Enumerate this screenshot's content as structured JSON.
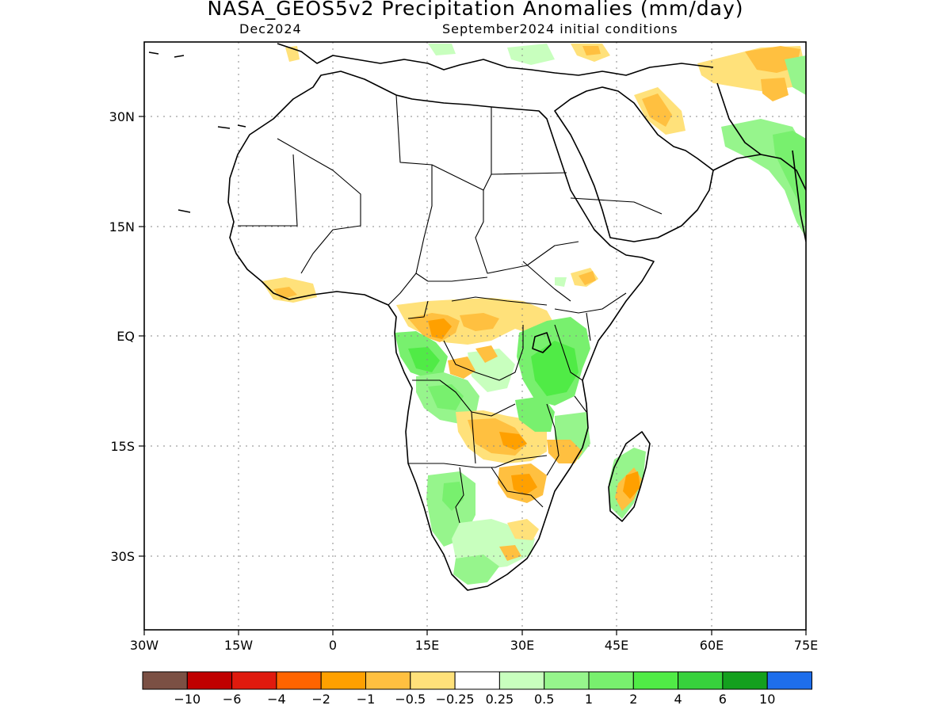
{
  "header": {
    "title": "NASA_GEOS5v2 Precipitation Anomalies (mm/day)",
    "forecast_month": "Dec2024",
    "initial_conditions": "September2024 initial conditions"
  },
  "map": {
    "region": "Africa",
    "lon_range": [
      -30,
      75
    ],
    "lat_range": [
      -40,
      40
    ],
    "lon_ticks": [
      "30W",
      "15W",
      "0",
      "15E",
      "30E",
      "45E",
      "60E",
      "75E"
    ],
    "lat_ticks": [
      "30N",
      "15N",
      "EQ",
      "15S",
      "30S"
    ],
    "grid": "dotted"
  },
  "legend": {
    "colors": [
      "#7b5044",
      "#c00000",
      "#e01a0e",
      "#ff6400",
      "#ffa000",
      "#ffc040",
      "#ffe17a",
      "#ffffff",
      "#c8ffbe",
      "#96f58c",
      "#78f06e",
      "#50eb46",
      "#37d23c",
      "#14a01e",
      "#1e6eeb"
    ],
    "labels": [
      "-10",
      "-6",
      "-4",
      "-2",
      "-1",
      "-0.5",
      "-0.25",
      "0.25",
      "0.5",
      "1",
      "2",
      "4",
      "6",
      "10"
    ]
  }
}
